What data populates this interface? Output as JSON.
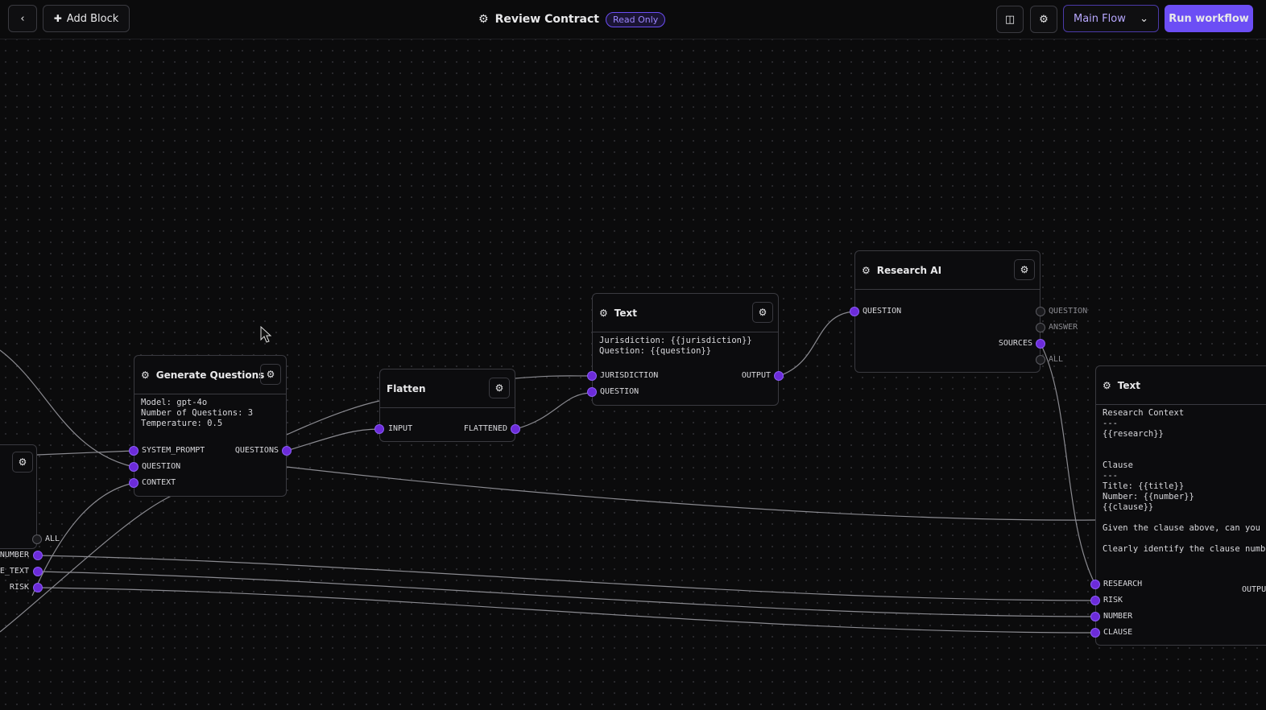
{
  "toolbar": {
    "add_block_label": "Add Block",
    "title": "Review Contract",
    "status_badge": "Read Only",
    "flow_select": "Main Flow",
    "run_label": "Run workflow"
  },
  "colors": {
    "accent": "#6c4ef5",
    "handle": "#6c2bd9",
    "bg": "#0b0b0c"
  },
  "nodes": {
    "generate_questions": {
      "title": "Generate Questions",
      "body": "Model: gpt-4o\nNumber of Questions: 3\nTemperature: 0.5",
      "inputs": [
        "SYSTEM_PROMPT",
        "QUESTION",
        "CONTEXT"
      ],
      "outputs": [
        "QUESTIONS"
      ]
    },
    "flatten": {
      "title": "Flatten",
      "inputs": [
        "INPUT"
      ],
      "outputs": [
        "FLATTENED"
      ]
    },
    "text1": {
      "title": "Text",
      "body": "Jurisdiction: {{jurisdiction}}\nQuestion: {{question}}",
      "inputs": [
        "JURISDICTION",
        "QUESTION"
      ],
      "outputs": [
        "OUTPUT"
      ]
    },
    "research_ai": {
      "title": "Research AI",
      "inputs": [
        "QUESTION"
      ],
      "outputs": [
        "QUESTION",
        "ANSWER",
        "SOURCES",
        "ALL"
      ]
    },
    "text2": {
      "title": "Text",
      "body": "Research Context\n---\n{{research}}\n\n\nClause\n---\nTitle: {{title}}\nNumber: {{number}}\n{{clause}}\n\nGiven the clause above, can you i\n\nClearly identify the clause numbe",
      "inputs": [
        "RESEARCH",
        "RISK",
        "NUMBER",
        "CLAUSE"
      ],
      "outputs": [
        "OUTPUT"
      ]
    },
    "left_partial": {
      "outputs": [
        "ALL",
        "NUMBER",
        "CLAUSE_TEXT",
        "RISK"
      ]
    }
  }
}
